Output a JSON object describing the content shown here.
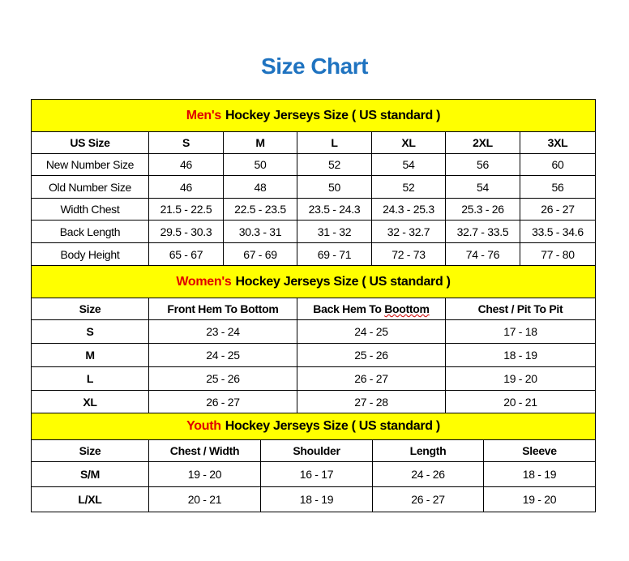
{
  "title": "Size Chart",
  "colors": {
    "title": "#1f73c0",
    "header_bg": "#ffff00",
    "accent_red": "#e00000"
  },
  "sections": [
    {
      "id": "men",
      "label_highlight": "Men's",
      "label_rest": "Hockey Jerseys Size ( US standard )",
      "columns": [
        "US Size",
        "S",
        "M",
        "L",
        "XL",
        "2XL",
        "3XL"
      ],
      "rows": [
        [
          "New Number Size",
          "46",
          "50",
          "52",
          "54",
          "56",
          "60"
        ],
        [
          "Old Number Size",
          "46",
          "48",
          "50",
          "52",
          "54",
          "56"
        ],
        [
          "Width Chest",
          "21.5 - 22.5",
          "22.5 - 23.5",
          "23.5 - 24.3",
          "24.3 - 25.3",
          "25.3 - 26",
          "26 - 27"
        ],
        [
          "Back Length",
          "29.5 - 30.3",
          "30.3 - 31",
          "31 - 32",
          "32 - 32.7",
          "32.7 - 33.5",
          "33.5 - 34.6"
        ],
        [
          "Body Height",
          "65 - 67",
          "67 - 69",
          "69 - 71",
          "72 - 73",
          "74 - 76",
          "77 - 80"
        ]
      ]
    },
    {
      "id": "women",
      "label_highlight": "Women's",
      "label_rest": "Hockey Jerseys Size ( US standard )",
      "columns": [
        "Size",
        "Front Hem To Bottom",
        "Back Hem To Boottom",
        "Chest / Pit To Pit"
      ],
      "rows": [
        [
          "S",
          "23 - 24",
          "24 - 25",
          "17 - 18"
        ],
        [
          "M",
          "24 - 25",
          "25 - 26",
          "18 - 19"
        ],
        [
          "L",
          "25 - 26",
          "26 - 27",
          "19 - 20"
        ],
        [
          "XL",
          "26 - 27",
          "27 - 28",
          "20 - 21"
        ]
      ]
    },
    {
      "id": "youth",
      "label_highlight": "Youth",
      "label_rest": "Hockey Jerseys Size ( US standard )",
      "columns": [
        "Size",
        "Chest / Width",
        "Shoulder",
        "Length",
        "Sleeve"
      ],
      "rows": [
        [
          "S/M",
          "19 - 20",
          "16 - 17",
          "24 - 26",
          "18 - 19"
        ],
        [
          "L/XL",
          "20 - 21",
          "18 - 19",
          "26 - 27",
          "19 - 20"
        ]
      ]
    }
  ]
}
